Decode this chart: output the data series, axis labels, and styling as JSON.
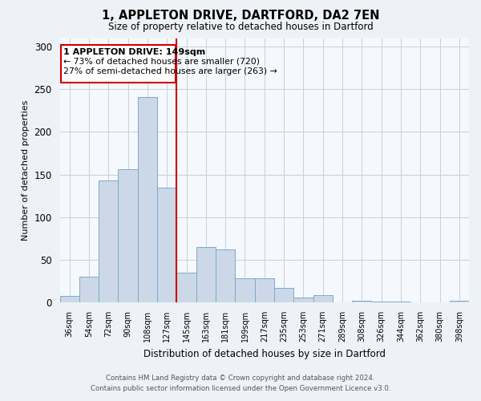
{
  "title": "1, APPLETON DRIVE, DARTFORD, DA2 7EN",
  "subtitle": "Size of property relative to detached houses in Dartford",
  "xlabel": "Distribution of detached houses by size in Dartford",
  "ylabel": "Number of detached properties",
  "bar_labels": [
    "36sqm",
    "54sqm",
    "72sqm",
    "90sqm",
    "108sqm",
    "127sqm",
    "145sqm",
    "163sqm",
    "181sqm",
    "199sqm",
    "217sqm",
    "235sqm",
    "253sqm",
    "271sqm",
    "289sqm",
    "308sqm",
    "326sqm",
    "344sqm",
    "362sqm",
    "380sqm",
    "398sqm"
  ],
  "bar_values": [
    8,
    30,
    143,
    156,
    241,
    135,
    35,
    65,
    62,
    28,
    28,
    17,
    6,
    9,
    0,
    2,
    1,
    1,
    0,
    0,
    2
  ],
  "bar_color": "#ccd8e8",
  "bar_edge_color": "#7aaacb",
  "vline_color": "#cc0000",
  "vline_pos": 5.5,
  "ylim": [
    0,
    310
  ],
  "yticks": [
    0,
    50,
    100,
    150,
    200,
    250,
    300
  ],
  "annotation_title": "1 APPLETON DRIVE: 149sqm",
  "annotation_line1": "← 73% of detached houses are smaller (720)",
  "annotation_line2": "27% of semi-detached houses are larger (263) →",
  "footer1": "Contains HM Land Registry data © Crown copyright and database right 2024.",
  "footer2": "Contains public sector information licensed under the Open Government Licence v3.0.",
  "bg_color": "#eef2f7",
  "plot_bg_color": "#f5f8fc",
  "grid_color": "#c8d0dc"
}
